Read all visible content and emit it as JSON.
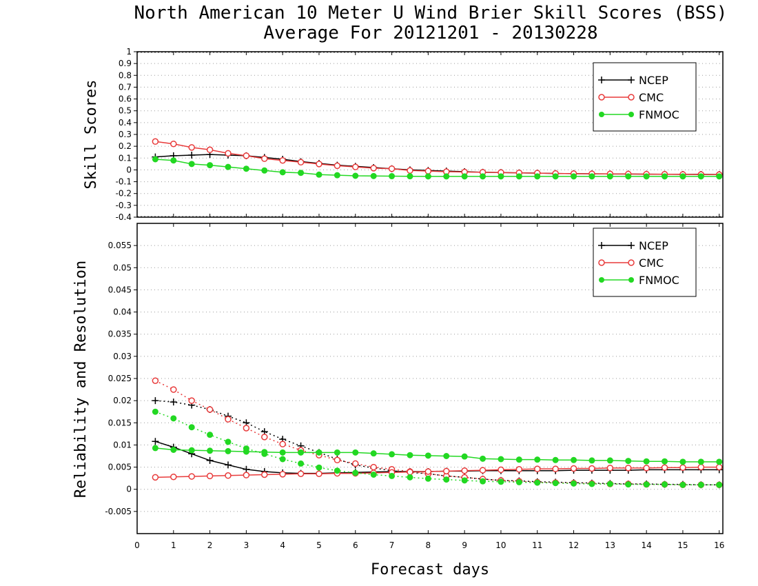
{
  "title_line1": "North American 10 Meter U Wind Brier Skill Scores (BSS)",
  "title_line2": "Average For 20121201 - 20130228",
  "xlabel": "Forecast days",
  "x_ticks": [
    "0",
    "1",
    "2",
    "3",
    "4",
    "5",
    "6",
    "7",
    "8",
    "9",
    "10",
    "11",
    "12",
    "13",
    "14",
    "15",
    "16"
  ],
  "colors": {
    "NCEP": "#000000",
    "CMC": "#e83a3a",
    "FNMOC": "#22d822"
  },
  "chart_data": [
    {
      "type": "line",
      "ylabel": "Skill Scores",
      "ylim": [
        -0.4,
        1
      ],
      "y_ticks": [
        "-0.4",
        "-0.3",
        "-0.2",
        "-0.1",
        "0",
        "0.1",
        "0.2",
        "0.3",
        "0.4",
        "0.5",
        "0.6",
        "0.7",
        "0.8",
        "0.9",
        "1"
      ],
      "xlim": [
        0,
        16.1
      ],
      "grid": true,
      "legend": "top-right",
      "x": [
        0.5,
        1,
        1.5,
        2,
        2.5,
        3,
        3.5,
        4,
        4.5,
        5,
        5.5,
        6,
        6.5,
        7,
        7.5,
        8,
        8.5,
        9,
        9.5,
        10,
        10.5,
        11,
        11.5,
        12,
        12.5,
        13,
        13.5,
        14,
        14.5,
        15,
        15.5,
        16
      ],
      "series": [
        {
          "name": "NCEP",
          "marker": "plus",
          "style": "solid",
          "values": [
            0.11,
            0.12,
            0.125,
            0.13,
            0.125,
            0.12,
            0.105,
            0.09,
            0.07,
            0.055,
            0.04,
            0.03,
            0.02,
            0.01,
            0.0,
            -0.005,
            -0.01,
            -0.015,
            -0.02,
            -0.022,
            -0.025,
            -0.027,
            -0.03,
            -0.032,
            -0.033,
            -0.034,
            -0.035,
            -0.036,
            -0.037,
            -0.038,
            -0.038,
            -0.039
          ]
        },
        {
          "name": "CMC",
          "marker": "circle",
          "style": "solid",
          "values": [
            0.24,
            0.22,
            0.19,
            0.17,
            0.14,
            0.12,
            0.095,
            0.08,
            0.065,
            0.05,
            0.035,
            0.025,
            0.015,
            0.01,
            -0.005,
            -0.01,
            -0.015,
            -0.018,
            -0.02,
            -0.022,
            -0.025,
            -0.027,
            -0.03,
            -0.032,
            -0.033,
            -0.034,
            -0.035,
            -0.036,
            -0.037,
            -0.038,
            -0.039,
            -0.04
          ]
        },
        {
          "name": "FNMOC",
          "marker": "dot",
          "style": "solid",
          "values": [
            0.09,
            0.08,
            0.05,
            0.04,
            0.025,
            0.01,
            -0.005,
            -0.02,
            -0.025,
            -0.04,
            -0.045,
            -0.05,
            -0.052,
            -0.053,
            -0.054,
            -0.055,
            -0.055,
            -0.055,
            -0.055,
            -0.055,
            -0.055,
            -0.055,
            -0.055,
            -0.055,
            -0.055,
            -0.055,
            -0.055,
            -0.055,
            -0.055,
            -0.055,
            -0.055,
            -0.055
          ]
        }
      ]
    },
    {
      "type": "line",
      "ylabel": "Reliability and Resolution",
      "ylim": [
        -0.01,
        0.06
      ],
      "y_ticks": [
        "-0.005",
        "0",
        "0.005",
        "0.01",
        "0.015",
        "0.02",
        "0.025",
        "0.03",
        "0.035",
        "0.04",
        "0.045",
        "0.05",
        "0.055"
      ],
      "xlim": [
        0,
        16.1
      ],
      "grid": true,
      "legend": "top-right",
      "x": [
        0.5,
        1,
        1.5,
        2,
        2.5,
        3,
        3.5,
        4,
        4.5,
        5,
        5.5,
        6,
        6.5,
        7,
        7.5,
        8,
        8.5,
        9,
        9.5,
        10,
        10.5,
        11,
        11.5,
        12,
        12.5,
        13,
        13.5,
        14,
        14.5,
        15,
        15.5,
        16
      ],
      "series": [
        {
          "name": "NCEP",
          "metric": "reliability",
          "marker": "plus",
          "style": "dotted",
          "values": [
            0.02,
            0.0197,
            0.019,
            0.018,
            0.0165,
            0.015,
            0.013,
            0.0113,
            0.0098,
            0.0083,
            0.0068,
            0.0055,
            0.0048,
            0.0042,
            0.0038,
            0.0035,
            0.003,
            0.0027,
            0.0023,
            0.002,
            0.0019,
            0.0017,
            0.0016,
            0.0015,
            0.0014,
            0.0013,
            0.0012,
            0.0012,
            0.0011,
            0.0011,
            0.001,
            0.001
          ]
        },
        {
          "name": "NCEP",
          "metric": "resolution",
          "marker": "plus",
          "style": "solid",
          "values": [
            0.0108,
            0.0095,
            0.008,
            0.0065,
            0.0055,
            0.0045,
            0.004,
            0.0037,
            0.0036,
            0.0036,
            0.0037,
            0.0038,
            0.0039,
            0.004,
            0.004,
            0.004,
            0.0041,
            0.0041,
            0.0042,
            0.0042,
            0.0042,
            0.0042,
            0.0042,
            0.0043,
            0.0043,
            0.0043,
            0.0043,
            0.0044,
            0.0044,
            0.0044,
            0.0044,
            0.0044
          ]
        },
        {
          "name": "CMC",
          "metric": "reliability",
          "marker": "circle",
          "style": "dotted",
          "values": [
            0.0245,
            0.0225,
            0.02,
            0.018,
            0.0158,
            0.0138,
            0.0118,
            0.0102,
            0.0088,
            0.0077,
            0.0066,
            0.0058,
            0.005,
            0.0045,
            0.004,
            0.0035,
            0.003,
            0.0027,
            0.0023,
            0.002,
            0.0018,
            0.0016,
            0.0015,
            0.0014,
            0.0013,
            0.0012,
            0.0012,
            0.0011,
            0.0011,
            0.001,
            0.001,
            0.001
          ]
        },
        {
          "name": "CMC",
          "metric": "resolution",
          "marker": "circle",
          "style": "solid",
          "values": [
            0.0027,
            0.0028,
            0.0029,
            0.003,
            0.0031,
            0.0032,
            0.0033,
            0.0034,
            0.0035,
            0.0035,
            0.0036,
            0.0036,
            0.0037,
            0.0038,
            0.0039,
            0.004,
            0.0041,
            0.0042,
            0.0043,
            0.0044,
            0.0045,
            0.0046,
            0.0046,
            0.0047,
            0.0047,
            0.0048,
            0.0048,
            0.0048,
            0.0049,
            0.0049,
            0.005,
            0.005
          ]
        },
        {
          "name": "FNMOC",
          "metric": "reliability",
          "marker": "dot",
          "style": "dotted",
          "values": [
            0.0175,
            0.016,
            0.014,
            0.0123,
            0.0107,
            0.0092,
            0.008,
            0.0068,
            0.0058,
            0.0049,
            0.0042,
            0.0037,
            0.0033,
            0.003,
            0.0027,
            0.0024,
            0.0022,
            0.002,
            0.0018,
            0.0017,
            0.0016,
            0.0015,
            0.0014,
            0.0013,
            0.0012,
            0.0012,
            0.0011,
            0.0011,
            0.0011,
            0.001,
            0.001,
            0.001
          ]
        },
        {
          "name": "FNMOC",
          "metric": "resolution",
          "marker": "dot",
          "style": "solid",
          "values": [
            0.0093,
            0.0089,
            0.0088,
            0.0087,
            0.0086,
            0.0085,
            0.0084,
            0.0083,
            0.0083,
            0.0083,
            0.0083,
            0.0083,
            0.0081,
            0.0079,
            0.0077,
            0.0076,
            0.0075,
            0.0074,
            0.0069,
            0.0068,
            0.0067,
            0.0067,
            0.0066,
            0.0066,
            0.0065,
            0.0065,
            0.0064,
            0.0063,
            0.0063,
            0.0062,
            0.0062,
            0.0062
          ]
        }
      ]
    }
  ]
}
